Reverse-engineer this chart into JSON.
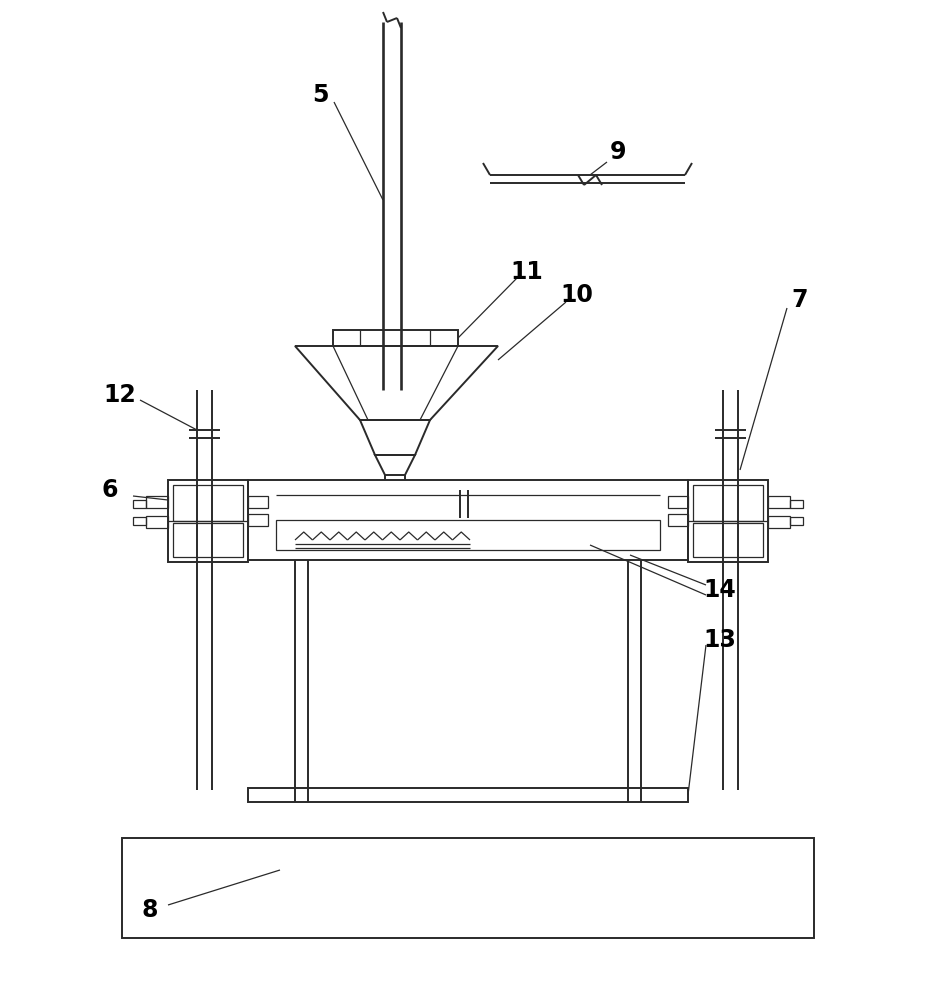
{
  "bg_color": "#ffffff",
  "line_color": "#2a2a2a",
  "lw": 1.4,
  "tlw": 0.9,
  "fig_width": 9.35,
  "fig_height": 10.0
}
